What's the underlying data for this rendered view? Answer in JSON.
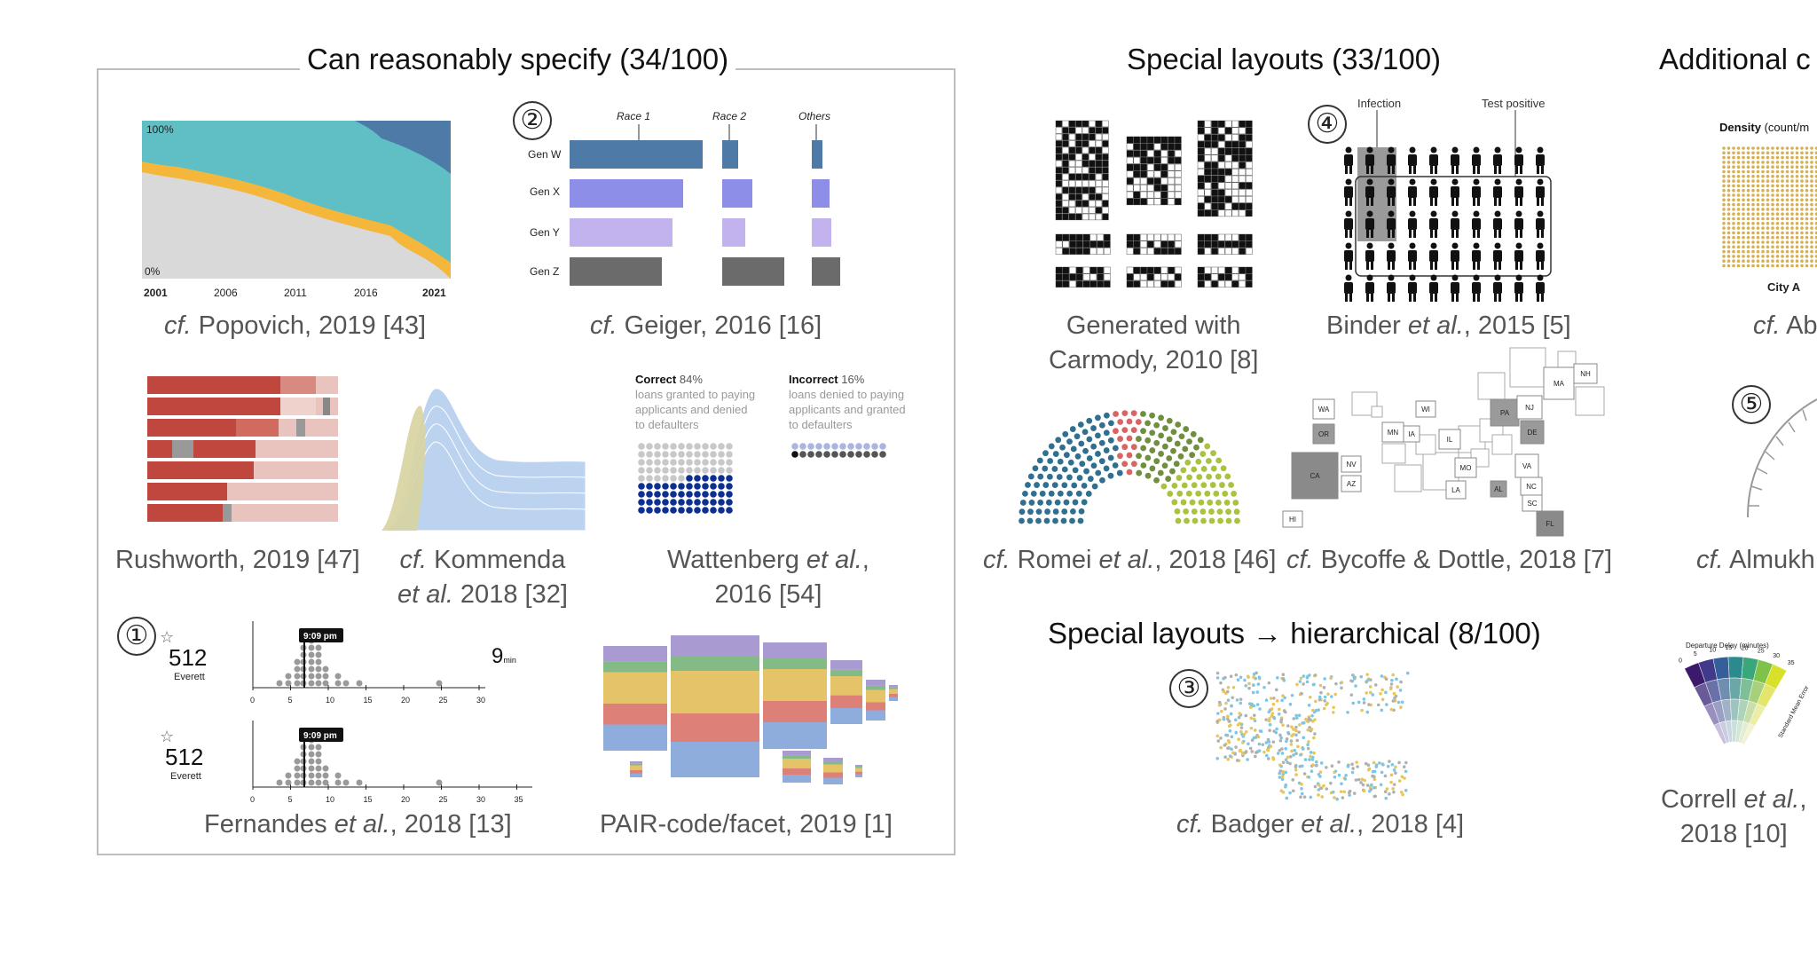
{
  "sections": {
    "reasonable": "Can reasonably specify (34/100)",
    "special": "Special layouts (33/100)",
    "additional": "Additional c",
    "hierarchical": "Special layouts → hierarchical (8/100)"
  },
  "badges": {
    "one": "①",
    "two": "②",
    "three": "③",
    "four": "④",
    "five": "⑤"
  },
  "captions": {
    "popovich": {
      "prefix": "cf.",
      "rest": " Popovich, 2019 [43]"
    },
    "geiger": {
      "prefix": "cf.",
      "rest": " Geiger, 2016 [16]"
    },
    "rushworth": "Rushworth, 2019 [47]",
    "kommenda": {
      "prefix": "cf.",
      "line1": " Kommenda",
      "etal": "et al.",
      "line2": " 2018 [32]"
    },
    "wattenberg": {
      "line1a": "Wattenberg ",
      "etal": "et al.",
      "line1b": ",",
      "line2": "2016 [54]"
    },
    "fernandes": {
      "a": "Fernandes ",
      "etal": "et al.",
      "b": ", 2018 [13]"
    },
    "pair": "PAIR-code/facet, 2019 [1]",
    "carmody": {
      "line1": "Generated with",
      "line2": "Carmody, 2010 [8]"
    },
    "binder": {
      "a": "Binder ",
      "etal": "et al.",
      "b": ", 2015 [5]"
    },
    "romei": {
      "prefix": "cf.",
      "a": " Romei ",
      "etal": "et al.",
      "b": ", 2018 [46]"
    },
    "bycoffe": {
      "prefix": "cf.",
      "rest": " Bycoffe & Dottle, 2018 [7]"
    },
    "badger": {
      "prefix": "cf.",
      "a": " Badger ",
      "etal": "et al.",
      "b": ", 2018 [4]"
    },
    "ab": {
      "prefix": "cf.",
      "rest": " Ab"
    },
    "almukh": {
      "prefix": "cf.",
      "rest": " Almukh"
    },
    "correll": {
      "a": "Correll ",
      "etal": "et al.",
      "b": ",",
      "line2": "2018 [10]"
    }
  },
  "popovich_chart": {
    "top_label": "100%",
    "bottom_label": "0%",
    "ticks": [
      "2001",
      "2006",
      "2011",
      "2016",
      "2021"
    ]
  },
  "geiger_chart": {
    "columns": [
      "Race 1",
      "Race 2",
      "Others"
    ],
    "rows": [
      "Gen W",
      "Gen X",
      "Gen Y",
      "Gen Z"
    ]
  },
  "wattenberg_chart": {
    "correct_title": "Correct",
    "correct_pct": "84%",
    "correct_desc": [
      "loans granted to paying",
      "applicants and denied",
      "to defaulters"
    ],
    "incorrect_title": "Incorrect",
    "incorrect_pct": "16%",
    "incorrect_desc": [
      "loans denied to paying",
      "applicants and granted",
      "to defaulters"
    ]
  },
  "fernandes_chart": {
    "score": "512",
    "name": "Everett",
    "time": "9:09 pm",
    "minutes": "9",
    "min_unit": "min",
    "ticks": [
      "0",
      "5",
      "10",
      "15",
      "20",
      "25",
      "30"
    ],
    "ticks2": [
      "0",
      "5",
      "10",
      "15",
      "20",
      "25",
      "30",
      "35"
    ]
  },
  "binder_chart": {
    "infection": "Infection",
    "test_positive": "Test positive"
  },
  "bycoffe_chart": {
    "states": [
      "WA",
      "OR",
      "CA",
      "NV",
      "AZ",
      "HI",
      "MN",
      "IA",
      "WI",
      "IL",
      "MO",
      "LA",
      "AL",
      "VA",
      "NC",
      "SC",
      "FL",
      "PA",
      "NJ",
      "DE",
      "MA",
      "NH"
    ]
  },
  "ab_chart": {
    "title": "Density",
    "unit": "(count/m",
    "city": "City A"
  },
  "correll_chart": {
    "title": "Departure Delay (minutes)",
    "axis": "Standard Mean Error",
    "ticks": [
      "0",
      "5",
      "10",
      "15",
      "20",
      "25",
      "30",
      "35"
    ]
  },
  "colors": {
    "teal": "#5fbfc4",
    "orange": "#f4b73b",
    "gray": "#d9d9d9",
    "steelblue": "#4e7aa8",
    "navy": "#0d2f8f",
    "genw": "#4e7aa8",
    "genx": "#8c8ee8",
    "geny": "#c2b2ee",
    "genz": "#6b6b6b"
  }
}
